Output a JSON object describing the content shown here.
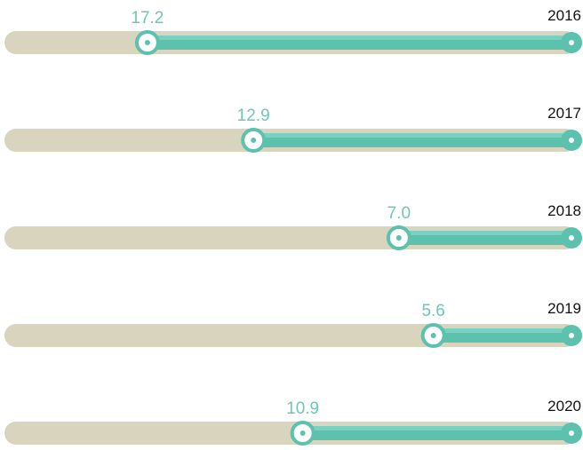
{
  "chart_data": {
    "type": "bar",
    "title": "",
    "xlabel": "",
    "ylabel": "",
    "categories": [
      "2016",
      "2017",
      "2018",
      "2019",
      "2020"
    ],
    "values": [
      17.2,
      12.9,
      7.0,
      5.6,
      10.9
    ],
    "value_labels": [
      "17.2",
      "12.9",
      "7.0",
      "5.6",
      "10.9"
    ],
    "xlim": [
      0,
      23
    ],
    "grid": false,
    "legend": "none"
  },
  "colors": {
    "track": "#d9d4be",
    "fill": "#5cc1ad",
    "fill_highlight": "#7ad1c2",
    "value_label": "#6fc6b8",
    "year_label": "#111111"
  }
}
